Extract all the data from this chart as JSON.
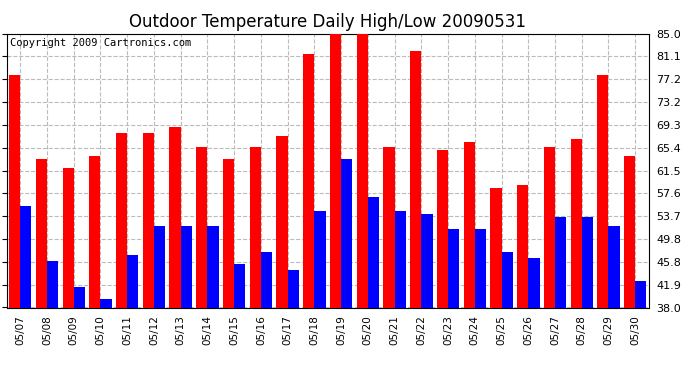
{
  "title": "Outdoor Temperature Daily High/Low 20090531",
  "copyright": "Copyright 2009 Cartronics.com",
  "dates": [
    "05/07",
    "05/08",
    "05/09",
    "05/10",
    "05/11",
    "05/12",
    "05/13",
    "05/14",
    "05/15",
    "05/16",
    "05/17",
    "05/18",
    "05/19",
    "05/20",
    "05/21",
    "05/22",
    "05/23",
    "05/24",
    "05/25",
    "05/26",
    "05/27",
    "05/28",
    "05/29",
    "05/30"
  ],
  "highs": [
    78.0,
    63.5,
    62.0,
    64.0,
    68.0,
    68.0,
    69.0,
    65.5,
    63.5,
    65.5,
    67.5,
    81.5,
    85.0,
    85.0,
    65.5,
    82.0,
    65.0,
    66.5,
    58.5,
    59.0,
    65.5,
    67.0,
    78.0,
    64.0
  ],
  "lows": [
    55.5,
    46.0,
    41.5,
    39.5,
    47.0,
    52.0,
    52.0,
    52.0,
    45.5,
    47.5,
    44.5,
    54.5,
    63.5,
    57.0,
    54.5,
    54.0,
    51.5,
    51.5,
    47.5,
    46.5,
    53.5,
    53.5,
    52.0,
    42.5
  ],
  "yticks": [
    38.0,
    41.9,
    45.8,
    49.8,
    53.7,
    57.6,
    61.5,
    65.4,
    69.3,
    73.2,
    77.2,
    81.1,
    85.0
  ],
  "ylim": [
    38.0,
    85.0
  ],
  "high_color": "#ff0000",
  "low_color": "#0000ff",
  "background_color": "#ffffff",
  "grid_color": "#bbbbbb",
  "title_fontsize": 12,
  "copyright_fontsize": 7.5,
  "bar_width": 0.42
}
